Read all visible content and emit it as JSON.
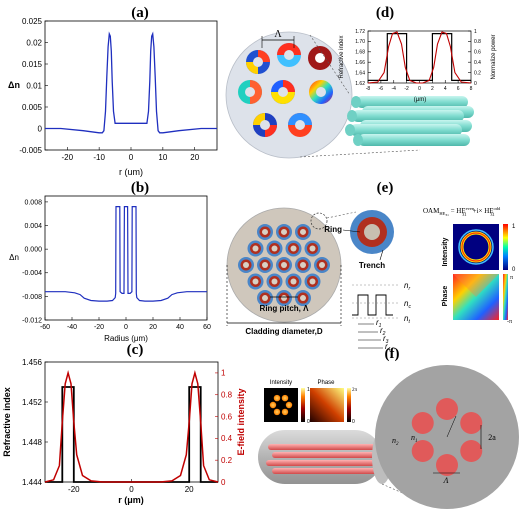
{
  "panels": {
    "a": {
      "label": "(a)",
      "ylabel": "Δn",
      "xlabel": "r (um)",
      "yticks": [
        "0.025",
        "0.02",
        "0.015",
        "0.01",
        "0.005",
        "0",
        "-0.005"
      ],
      "xticks": [
        "-20",
        "-10",
        "0",
        "10",
        "20"
      ]
    },
    "b": {
      "label": "(b)",
      "ylabel": "Δn",
      "xlabel": "Radius (μm)",
      "yticks": [
        "0.008",
        "0.004",
        "0.000",
        "-0.004",
        "-0.008",
        "-0.012"
      ],
      "xticks": [
        "-60",
        "-40",
        "-20",
        "0",
        "20",
        "40",
        "60"
      ]
    },
    "c": {
      "label": "(c)",
      "ylabel_left": "Refractive index",
      "ylabel_right": "E-field intensity",
      "xlabel": "r (μm)",
      "yticks_left": [
        "1.456",
        "1.452",
        "1.448",
        "1.444"
      ],
      "yticks_right": [
        "1",
        "0.8",
        "0.6",
        "0.4",
        "0.2",
        "0"
      ],
      "xticks": [
        "-20",
        "0",
        "20"
      ]
    },
    "d": {
      "label": "(d)",
      "lambda": "Λ",
      "inset_ylabel_left": "Refractive index",
      "inset_ylabel_right": "Normalize power",
      "inset_xlabel": "(μm)",
      "inset_yticks": [
        "1.72",
        "1.70",
        "1.68",
        "1.66",
        "1.64",
        "1.62"
      ],
      "inset_yticks_right": [
        "1",
        "0.8",
        "0.6",
        "0.4",
        "0.2",
        "0"
      ],
      "inset_xticks": [
        "-8",
        "-6",
        "-4",
        "-2",
        "0",
        "2",
        "4",
        "6",
        "8"
      ]
    },
    "e": {
      "label": "(e)",
      "ring": "Ring",
      "trench": "Trench",
      "ring_pitch": "Ring pitch, Λ",
      "cladding": "Cladding diameter,D",
      "oam_lhs": "OAM",
      "oam_lhs_sub": "HE",
      "oam_lhs_subsub": "31",
      "oam_eq": " = HE",
      "oam_even_sup": "even",
      "oam_sub": "31",
      "oam_plus": "+i× HE",
      "oam_odd_sup": "odd",
      "intensity": "Intensity",
      "phase": "Phase",
      "cb_int_top": "1",
      "cb_int_bot": "0",
      "cb_ph_top": "π",
      "cb_ph_bot": "-π",
      "n_r": "n",
      "n_r_sub": "r",
      "n_c": "n",
      "n_c_sub": "c",
      "n_t": "n",
      "n_t_sub": "t",
      "r1": "r",
      "r1_sub": "1",
      "r2": "r",
      "r2_sub": "2",
      "r3": "r",
      "r3_sub": "3",
      "r4": "r",
      "r4_sub": "4"
    },
    "f": {
      "label": "(f)",
      "intensity": "Intensity",
      "phase": "Phase",
      "cb_int_top": "1",
      "cb_int_bot": "0",
      "cb_ph_top": "2π",
      "cb_ph_bot": "0",
      "n2": "n",
      "n2_sub": "2",
      "n1": "n",
      "n1_sub": "1",
      "two_a": "2a",
      "lambda": "Λ"
    }
  },
  "chart_data": [
    {
      "panel": "a",
      "type": "line",
      "xlabel": "r (um)",
      "ylabel": "Δn",
      "xlim": [
        -27,
        27
      ],
      "ylim": [
        -0.005,
        0.025
      ],
      "series": [
        {
          "color": "#1f2fbf",
          "x": [
            -27,
            -22,
            -15,
            -10,
            -9,
            -8.5,
            -8,
            -7.6,
            -7.2,
            -6.8,
            -6.5,
            -6.2,
            -5.9,
            -5.5,
            -5,
            -4,
            -2,
            0,
            2,
            4,
            5,
            5.5,
            5.9,
            6.2,
            6.5,
            6.8,
            7.2,
            7.6,
            8,
            8.5,
            9,
            10,
            15,
            22,
            27
          ],
          "y": [
            0,
            0,
            -0.0005,
            -0.001,
            -0.001,
            -0.0005,
            0.004,
            0.012,
            0.019,
            0.022,
            0.0215,
            0.018,
            0.011,
            0.004,
            0.0012,
            0.0012,
            0.0012,
            0.0012,
            0.0012,
            0.0012,
            0.0012,
            0.004,
            0.011,
            0.018,
            0.0215,
            0.022,
            0.019,
            0.012,
            0.004,
            -0.0005,
            -0.001,
            -0.001,
            -0.0005,
            0,
            0
          ]
        }
      ]
    },
    {
      "panel": "b",
      "type": "line",
      "xlabel": "Radius (μm)",
      "ylabel": "Δn",
      "xlim": [
        -60,
        60
      ],
      "ylim": [
        -0.012,
        0.009
      ],
      "series": [
        {
          "color": "#1f2fbf",
          "x": [
            -60,
            -45,
            -38,
            -34,
            -31,
            -26,
            -20,
            -14,
            -10,
            -8,
            -7.6,
            -7.4,
            -4.6,
            -4.4,
            -3,
            -1.5,
            -1.2,
            -0.8,
            0,
            0.8,
            1.2,
            1.5,
            3,
            4.4,
            4.6,
            7.4,
            7.6,
            8,
            10,
            14,
            20,
            26,
            31,
            34,
            38,
            45,
            60
          ],
          "y": [
            -0.0072,
            -0.0072,
            -0.0074,
            -0.0077,
            -0.0083,
            -0.0087,
            -0.0088,
            -0.0088,
            -0.0087,
            -0.0082,
            -0.0075,
            0.0072,
            0.0072,
            -0.0072,
            -0.0075,
            -0.0075,
            0.0072,
            0.0072,
            0.0072,
            0.0072,
            0.0072,
            -0.0075,
            -0.0075,
            -0.0072,
            0.0072,
            0.0072,
            -0.0075,
            -0.0082,
            -0.0087,
            -0.0088,
            -0.0088,
            -0.0087,
            -0.0083,
            -0.0077,
            -0.0074,
            -0.0072,
            -0.0072
          ]
        }
      ]
    },
    {
      "panel": "c",
      "type": "line",
      "xlabel": "r (μm)",
      "ylabel": "Refractive index",
      "ylabel_right": "E-field intensity",
      "xlim": [
        -30,
        30
      ],
      "ylim": [
        1.444,
        1.456
      ],
      "ylim_right": [
        0,
        1.1
      ],
      "series": [
        {
          "axis": "left",
          "color": "#000000",
          "x": [
            -30,
            -24,
            -24,
            -20,
            -20,
            20,
            20,
            24,
            24,
            30
          ],
          "y": [
            1.444,
            1.444,
            1.4535,
            1.4535,
            1.444,
            1.444,
            1.4535,
            1.4535,
            1.444,
            1.444
          ]
        },
        {
          "axis": "right",
          "color": "#c00000",
          "x": [
            -30,
            -27,
            -25,
            -24,
            -23,
            -22,
            -21,
            -20,
            -19,
            -17,
            -14,
            -10,
            -5,
            0,
            5,
            10,
            14,
            17,
            19,
            20,
            21,
            22,
            23,
            24,
            25,
            27,
            30
          ],
          "y": [
            0,
            0.02,
            0.15,
            0.55,
            0.9,
            1.0,
            0.9,
            0.55,
            0.25,
            0.06,
            0.01,
            0,
            0,
            0,
            0,
            0,
            0.01,
            0.06,
            0.25,
            0.55,
            0.9,
            1.0,
            0.9,
            0.55,
            0.15,
            0.02,
            0
          ]
        }
      ]
    },
    {
      "panel": "d-inset",
      "type": "line",
      "xlabel": "(μm)",
      "ylabel": "Refractive index",
      "ylabel_right": "Normalize power",
      "xlim": [
        -8,
        8
      ],
      "ylim": [
        1.62,
        1.72
      ],
      "ylim_right": [
        0,
        1
      ],
      "series": [
        {
          "axis": "left",
          "color": "#000000",
          "x": [
            -8,
            -5,
            -5,
            -2,
            -2,
            2,
            2,
            5,
            5,
            8
          ],
          "y": [
            1.625,
            1.625,
            1.715,
            1.715,
            1.625,
            1.625,
            1.715,
            1.715,
            1.625,
            1.625
          ]
        },
        {
          "axis": "right",
          "color": "#c00000",
          "x": [
            -8,
            -6.5,
            -5.5,
            -4.8,
            -4.2,
            -3.5,
            -2.8,
            -2.2,
            -1.5,
            -0.5,
            0,
            0.5,
            1.5,
            2.2,
            2.8,
            3.5,
            4.2,
            4.8,
            5.5,
            6.5,
            8
          ],
          "y": [
            0,
            0.02,
            0.2,
            0.7,
            0.95,
            0.98,
            0.75,
            0.3,
            0.05,
            0,
            0,
            0,
            0.05,
            0.3,
            0.75,
            0.98,
            0.95,
            0.7,
            0.2,
            0.02,
            0
          ]
        }
      ]
    }
  ],
  "colors": {
    "blue_curve": "#1f2fbf",
    "red_curve": "#c00000",
    "fiber_teal": "#8ee6dc",
    "ring_red": "#c0392b",
    "ring_blue": "#4a86c8",
    "fiber_gray": "#9a9a9a",
    "core_red": "#e05a5a"
  }
}
